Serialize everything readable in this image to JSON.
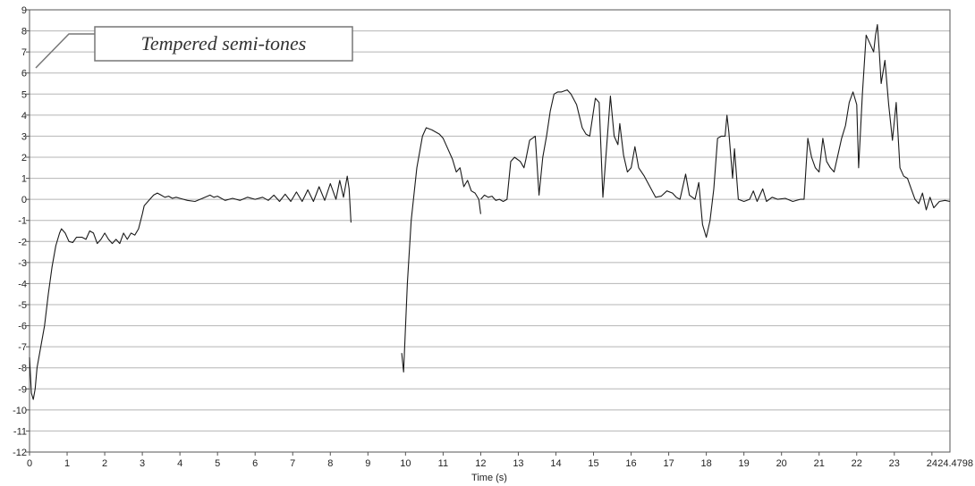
{
  "chart_data": {
    "type": "line",
    "title": "",
    "xlabel": "Time (s)",
    "ylabel": "",
    "xlim": [
      0,
      24.4798
    ],
    "ylim": [
      -12,
      9
    ],
    "x_ticks": [
      "0",
      "1",
      "2",
      "3",
      "4",
      "5",
      "6",
      "7",
      "8",
      "9",
      "10",
      "11",
      "12",
      "13",
      "14",
      "15",
      "16",
      "17",
      "18",
      "19",
      "20",
      "21",
      "22",
      "23",
      "24"
    ],
    "x_end_label": "24.4798",
    "y_ticks": [
      "-12",
      "-11",
      "-10",
      "-9",
      "-8",
      "-7",
      "-6",
      "-5",
      "-4",
      "-3",
      "-2",
      "-1",
      "0",
      "1",
      "2",
      "3",
      "4",
      "5",
      "6",
      "7",
      "8",
      "9"
    ],
    "grid": "horizontal",
    "legend": "none",
    "annotation": {
      "text": "Tempered semi-tones",
      "placement": "top-left"
    },
    "colors": {
      "line": "#1a1a1a",
      "grid": "#b5b5b5",
      "axis": "#555555",
      "background": "#ffffff"
    },
    "series": [
      {
        "segments": [
          [
            [
              0,
              -7.5
            ],
            [
              0.05,
              -9.2
            ],
            [
              0.1,
              -9.5
            ],
            [
              0.15,
              -9
            ],
            [
              0.2,
              -8
            ],
            [
              0.3,
              -7
            ],
            [
              0.4,
              -6
            ],
            [
              0.5,
              -4.5
            ],
            [
              0.6,
              -3.2
            ],
            [
              0.7,
              -2.2
            ],
            [
              0.8,
              -1.6
            ],
            [
              0.85,
              -1.4
            ],
            [
              0.95,
              -1.6
            ],
            [
              1.05,
              -2
            ],
            [
              1.15,
              -2.05
            ],
            [
              1.25,
              -1.8
            ],
            [
              1.4,
              -1.8
            ],
            [
              1.5,
              -1.9
            ],
            [
              1.6,
              -1.5
            ],
            [
              1.7,
              -1.6
            ],
            [
              1.8,
              -2.1
            ],
            [
              1.9,
              -1.9
            ],
            [
              2,
              -1.6
            ],
            [
              2.1,
              -1.9
            ],
            [
              2.2,
              -2.1
            ],
            [
              2.3,
              -1.9
            ],
            [
              2.4,
              -2.1
            ],
            [
              2.5,
              -1.6
            ],
            [
              2.6,
              -1.9
            ],
            [
              2.7,
              -1.6
            ],
            [
              2.8,
              -1.7
            ],
            [
              2.9,
              -1.4
            ],
            [
              3,
              -0.7
            ],
            [
              3.05,
              -0.3
            ],
            [
              3.1,
              -0.2
            ],
            [
              3.2,
              0
            ],
            [
              3.3,
              0.2
            ],
            [
              3.4,
              0.3
            ],
            [
              3.5,
              0.2
            ],
            [
              3.6,
              0.1
            ],
            [
              3.7,
              0.15
            ],
            [
              3.8,
              0.05
            ],
            [
              3.9,
              0.1
            ],
            [
              4,
              0.05
            ],
            [
              4.2,
              -0.05
            ],
            [
              4.4,
              -0.1
            ],
            [
              4.6,
              0.05
            ],
            [
              4.8,
              0.2
            ],
            [
              4.9,
              0.1
            ],
            [
              5,
              0.15
            ],
            [
              5.2,
              -0.05
            ],
            [
              5.4,
              0.05
            ],
            [
              5.6,
              -0.05
            ],
            [
              5.8,
              0.1
            ],
            [
              6,
              0
            ],
            [
              6.2,
              0.1
            ],
            [
              6.35,
              -0.05
            ],
            [
              6.5,
              0.2
            ],
            [
              6.65,
              -0.1
            ],
            [
              6.8,
              0.25
            ],
            [
              6.95,
              -0.1
            ],
            [
              7.1,
              0.35
            ],
            [
              7.25,
              -0.1
            ],
            [
              7.4,
              0.45
            ],
            [
              7.55,
              -0.1
            ],
            [
              7.7,
              0.6
            ],
            [
              7.85,
              -0.05
            ],
            [
              8,
              0.75
            ],
            [
              8.15,
              0
            ],
            [
              8.25,
              0.9
            ],
            [
              8.35,
              0.1
            ],
            [
              8.45,
              1.1
            ],
            [
              8.5,
              0.5
            ],
            [
              8.55,
              -1.1
            ]
          ],
          [
            [
              9.9,
              -7.3
            ],
            [
              9.95,
              -8.2
            ],
            [
              10.05,
              -4
            ],
            [
              10.15,
              -1
            ],
            [
              10.3,
              1.5
            ],
            [
              10.45,
              3
            ],
            [
              10.55,
              3.4
            ],
            [
              10.7,
              3.3
            ],
            [
              10.9,
              3.1
            ],
            [
              11,
              2.9
            ],
            [
              11.1,
              2.5
            ],
            [
              11.25,
              1.9
            ],
            [
              11.35,
              1.3
            ],
            [
              11.45,
              1.5
            ],
            [
              11.55,
              0.6
            ],
            [
              11.65,
              0.9
            ],
            [
              11.75,
              0.4
            ],
            [
              11.85,
              0.3
            ],
            [
              11.95,
              0
            ],
            [
              12,
              -0.7
            ]
          ],
          [
            [
              12,
              0
            ],
            [
              12.1,
              0.2
            ],
            [
              12.2,
              0.1
            ],
            [
              12.3,
              0.15
            ],
            [
              12.4,
              -0.05
            ],
            [
              12.5,
              0
            ],
            [
              12.6,
              -0.1
            ],
            [
              12.7,
              0
            ],
            [
              12.8,
              1.8
            ],
            [
              12.9,
              2
            ],
            [
              13.05,
              1.8
            ],
            [
              13.15,
              1.5
            ],
            [
              13.2,
              1.9
            ],
            [
              13.3,
              2.8
            ],
            [
              13.45,
              3
            ],
            [
              13.55,
              0.2
            ],
            [
              13.65,
              2
            ],
            [
              13.75,
              3
            ],
            [
              13.85,
              4.2
            ],
            [
              13.95,
              5
            ],
            [
              14.05,
              5.1
            ],
            [
              14.15,
              5.1
            ],
            [
              14.3,
              5.2
            ],
            [
              14.4,
              5
            ],
            [
              14.55,
              4.5
            ],
            [
              14.7,
              3.4
            ],
            [
              14.8,
              3.1
            ],
            [
              14.9,
              3
            ],
            [
              15.05,
              4.8
            ],
            [
              15.15,
              4.6
            ],
            [
              15.25,
              0.1
            ],
            [
              15.35,
              2.5
            ],
            [
              15.45,
              4.9
            ],
            [
              15.55,
              3
            ],
            [
              15.65,
              2.6
            ],
            [
              15.7,
              3.6
            ],
            [
              15.8,
              2.1
            ],
            [
              15.9,
              1.3
            ],
            [
              16,
              1.5
            ],
            [
              16.1,
              2.5
            ],
            [
              16.2,
              1.5
            ],
            [
              16.35,
              1.1
            ],
            [
              16.5,
              0.6
            ],
            [
              16.65,
              0.1
            ],
            [
              16.8,
              0.15
            ],
            [
              16.95,
              0.4
            ],
            [
              17.1,
              0.3
            ],
            [
              17.2,
              0.1
            ],
            [
              17.3,
              0
            ],
            [
              17.45,
              1.2
            ],
            [
              17.55,
              0.2
            ],
            [
              17.7,
              0
            ],
            [
              17.8,
              0.8
            ],
            [
              17.9,
              -1.2
            ],
            [
              18,
              -1.8
            ],
            [
              18.1,
              -1
            ],
            [
              18.2,
              0.5
            ],
            [
              18.3,
              2.9
            ],
            [
              18.4,
              3
            ],
            [
              18.5,
              3
            ],
            [
              18.55,
              4
            ],
            [
              18.6,
              3.2
            ],
            [
              18.7,
              1
            ],
            [
              18.75,
              2.4
            ],
            [
              18.85,
              0
            ],
            [
              19,
              -0.1
            ],
            [
              19.15,
              0
            ],
            [
              19.25,
              0.4
            ],
            [
              19.35,
              -0.1
            ],
            [
              19.5,
              0.5
            ],
            [
              19.6,
              -0.1
            ],
            [
              19.75,
              0.1
            ],
            [
              19.9,
              0
            ],
            [
              20.1,
              0.05
            ],
            [
              20.3,
              -0.1
            ],
            [
              20.5,
              0
            ],
            [
              20.6,
              0
            ],
            [
              20.7,
              2.9
            ],
            [
              20.8,
              2
            ],
            [
              20.9,
              1.5
            ],
            [
              21,
              1.3
            ],
            [
              21.1,
              2.9
            ],
            [
              21.2,
              1.8
            ],
            [
              21.3,
              1.5
            ],
            [
              21.4,
              1.3
            ],
            [
              21.5,
              2.1
            ],
            [
              21.6,
              2.9
            ],
            [
              21.7,
              3.5
            ],
            [
              21.8,
              4.6
            ],
            [
              21.9,
              5.1
            ],
            [
              22,
              4.5
            ],
            [
              22.05,
              1.5
            ],
            [
              22.15,
              5
            ],
            [
              22.25,
              7.8
            ],
            [
              22.35,
              7.4
            ],
            [
              22.45,
              7
            ],
            [
              22.5,
              7.8
            ],
            [
              22.55,
              8.3
            ],
            [
              22.6,
              7
            ],
            [
              22.65,
              5.5
            ],
            [
              22.75,
              6.6
            ],
            [
              22.85,
              4.5
            ],
            [
              22.95,
              2.8
            ],
            [
              23.05,
              4.6
            ],
            [
              23.15,
              1.5
            ],
            [
              23.25,
              1.1
            ],
            [
              23.35,
              1
            ],
            [
              23.45,
              0.5
            ],
            [
              23.55,
              0
            ],
            [
              23.65,
              -0.2
            ],
            [
              23.75,
              0.3
            ],
            [
              23.85,
              -0.5
            ],
            [
              23.95,
              0.1
            ],
            [
              24.05,
              -0.4
            ],
            [
              24.2,
              -0.1
            ],
            [
              24.35,
              -0.05
            ],
            [
              24.4798,
              -0.1
            ]
          ]
        ]
      }
    ]
  }
}
